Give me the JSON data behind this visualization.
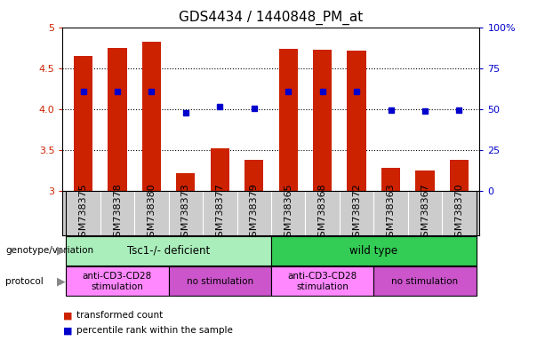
{
  "title": "GDS4434 / 1440848_PM_at",
  "samples": [
    "GSM738375",
    "GSM738378",
    "GSM738380",
    "GSM738373",
    "GSM738377",
    "GSM738379",
    "GSM738365",
    "GSM738368",
    "GSM738372",
    "GSM738363",
    "GSM738367",
    "GSM738370"
  ],
  "bar_values": [
    4.65,
    4.75,
    4.82,
    3.22,
    3.52,
    3.38,
    4.74,
    4.73,
    4.72,
    3.28,
    3.25,
    3.38
  ],
  "bar_base": 3.0,
  "percentile_values": [
    4.22,
    4.22,
    4.22,
    3.95,
    4.03,
    4.01,
    4.22,
    4.22,
    4.22,
    3.99,
    3.98,
    3.99
  ],
  "ylim": [
    3.0,
    5.0
  ],
  "y2lim": [
    0,
    100
  ],
  "yticks": [
    3.0,
    3.5,
    4.0,
    4.5,
    5.0
  ],
  "y2ticks": [
    0,
    25,
    50,
    75,
    100
  ],
  "bar_color": "#cc2200",
  "percentile_color": "#0000cc",
  "background_color": "#ffffff",
  "xtick_bg": "#cccccc",
  "genotype_groups": [
    {
      "label": "Tsc1-/- deficient",
      "start": 0,
      "end": 6,
      "color": "#aaeebb"
    },
    {
      "label": "wild type",
      "start": 6,
      "end": 12,
      "color": "#33cc55"
    }
  ],
  "protocol_groups": [
    {
      "label": "anti-CD3-CD28\nstimulation",
      "start": 0,
      "end": 3,
      "color": "#ff88ff"
    },
    {
      "label": "no stimulation",
      "start": 3,
      "end": 6,
      "color": "#cc55cc"
    },
    {
      "label": "anti-CD3-CD28\nstimulation",
      "start": 6,
      "end": 9,
      "color": "#ff88ff"
    },
    {
      "label": "no stimulation",
      "start": 9,
      "end": 12,
      "color": "#cc55cc"
    }
  ],
  "legend_items": [
    {
      "label": "transformed count",
      "color": "#cc2200"
    },
    {
      "label": "percentile rank within the sample",
      "color": "#0000cc"
    }
  ],
  "tick_label_color": "#cc2200",
  "y2_tick_color": "#0000cc",
  "title_fontsize": 11,
  "tick_fontsize": 8,
  "bar_width": 0.55
}
